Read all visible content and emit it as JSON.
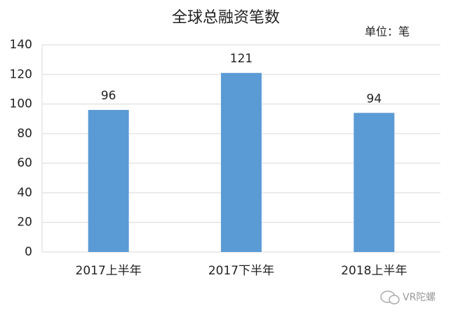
{
  "chart_data": {
    "type": "bar",
    "title": "全球总融资笔数",
    "unit": "单位：笔",
    "categories": [
      "2017上半年",
      "2017下半年",
      "2018上半年"
    ],
    "values": [
      96,
      121,
      94
    ],
    "color": "#5b9bd5",
    "ylim": [
      0,
      140
    ],
    "yticks": [
      0,
      20,
      40,
      60,
      80,
      100,
      120,
      140
    ],
    "grid": true
  },
  "watermark": "VR陀螺"
}
